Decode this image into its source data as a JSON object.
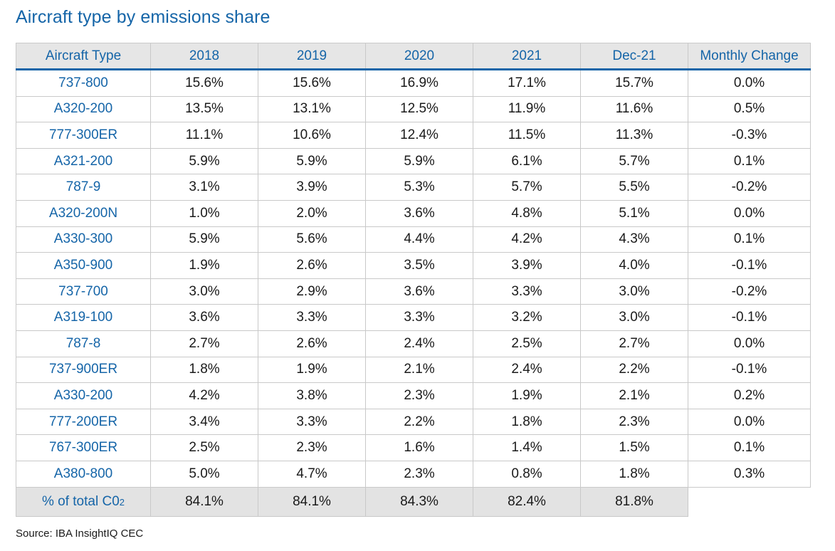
{
  "title": "Aircraft type by emissions share",
  "source": "Source: IBA InsightIQ CEC",
  "colors": {
    "accent": "#1565a8",
    "header_bg": "#e6e6e6",
    "total_bg": "#e3e3e3",
    "border": "#c9c9c9"
  },
  "chart_data": {
    "type": "table",
    "title": "Aircraft type by emissions share",
    "columns": [
      "Aircraft Type",
      "2018",
      "2019",
      "2020",
      "2021",
      "Dec-21",
      "Monthly Change"
    ],
    "rows": [
      [
        "737-800",
        "15.6%",
        "15.6%",
        "16.9%",
        "17.1%",
        "15.7%",
        "0.0%"
      ],
      [
        "A320-200",
        "13.5%",
        "13.1%",
        "12.5%",
        "11.9%",
        "11.6%",
        "0.5%"
      ],
      [
        "777-300ER",
        "11.1%",
        "10.6%",
        "12.4%",
        "11.5%",
        "11.3%",
        "-0.3%"
      ],
      [
        "A321-200",
        "5.9%",
        "5.9%",
        "5.9%",
        "6.1%",
        "5.7%",
        "0.1%"
      ],
      [
        "787-9",
        "3.1%",
        "3.9%",
        "5.3%",
        "5.7%",
        "5.5%",
        "-0.2%"
      ],
      [
        "A320-200N",
        "1.0%",
        "2.0%",
        "3.6%",
        "4.8%",
        "5.1%",
        "0.0%"
      ],
      [
        "A330-300",
        "5.9%",
        "5.6%",
        "4.4%",
        "4.2%",
        "4.3%",
        "0.1%"
      ],
      [
        "A350-900",
        "1.9%",
        "2.6%",
        "3.5%",
        "3.9%",
        "4.0%",
        "-0.1%"
      ],
      [
        "737-700",
        "3.0%",
        "2.9%",
        "3.6%",
        "3.3%",
        "3.0%",
        "-0.2%"
      ],
      [
        "A319-100",
        "3.6%",
        "3.3%",
        "3.3%",
        "3.2%",
        "3.0%",
        "-0.1%"
      ],
      [
        "787-8",
        "2.7%",
        "2.6%",
        "2.4%",
        "2.5%",
        "2.7%",
        "0.0%"
      ],
      [
        "737-900ER",
        "1.8%",
        "1.9%",
        "2.1%",
        "2.4%",
        "2.2%",
        "-0.1%"
      ],
      [
        "A330-200",
        "4.2%",
        "3.8%",
        "2.3%",
        "1.9%",
        "2.1%",
        "0.2%"
      ],
      [
        "777-200ER",
        "3.4%",
        "3.3%",
        "2.2%",
        "1.8%",
        "2.3%",
        "0.0%"
      ],
      [
        "767-300ER",
        "2.5%",
        "2.3%",
        "1.6%",
        "1.4%",
        "1.5%",
        "0.1%"
      ],
      [
        "A380-800",
        "5.0%",
        "4.7%",
        "2.3%",
        "0.8%",
        "1.8%",
        "0.3%"
      ]
    ],
    "total_row": {
      "label": "% of total C0",
      "label_subscript": "2",
      "values": [
        "84.1%",
        "84.1%",
        "84.3%",
        "82.4%",
        "81.8%"
      ]
    }
  }
}
